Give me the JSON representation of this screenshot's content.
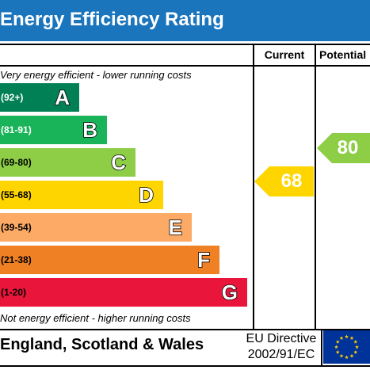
{
  "title": "Energy Efficiency Rating",
  "columns": {
    "current": "Current",
    "potential": "Potential"
  },
  "notes": {
    "top": "Very energy efficient - lower running costs",
    "bottom": "Not energy efficient - higher running costs"
  },
  "bands": [
    {
      "letter": "A",
      "range": "(92+)",
      "color": "#008054"
    },
    {
      "letter": "B",
      "range": "(81-91)",
      "color": "#19b459"
    },
    {
      "letter": "C",
      "range": "(69-80)",
      "color": "#8dce46"
    },
    {
      "letter": "D",
      "range": "(55-68)",
      "color": "#ffd500"
    },
    {
      "letter": "E",
      "range": "(39-54)",
      "color": "#fcaa65"
    },
    {
      "letter": "F",
      "range": "(21-38)",
      "color": "#ef8023"
    },
    {
      "letter": "G",
      "range": "(1-20)",
      "color": "#e9153b"
    }
  ],
  "ratings": {
    "current": {
      "value": "68",
      "band": "D",
      "color": "#ffd500"
    },
    "potential": {
      "value": "80",
      "band": "C",
      "color": "#8dce46"
    }
  },
  "footer": {
    "country": "England, Scotland & Wales",
    "directive_line1": "EU Directive",
    "directive_line2": "2002/91/EC",
    "flag_color": "#003399",
    "star_color": "#ffcc00"
  }
}
